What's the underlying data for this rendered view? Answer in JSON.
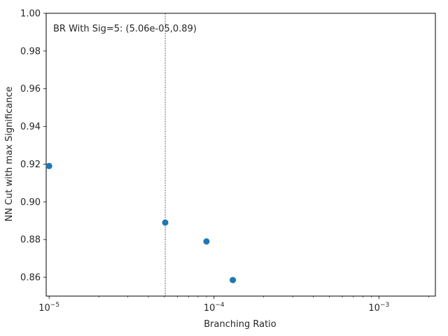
{
  "chart_data": {
    "type": "scatter",
    "title": "",
    "xlabel": "Branching Ratio",
    "ylabel": "NN Cut with max Significance",
    "xscale": "log",
    "xlim": [
      9.6e-06,
      0.0022
    ],
    "ylim": [
      0.85,
      1.0
    ],
    "grid": false,
    "x_ticks": [
      {
        "value": 1e-05,
        "base": "10",
        "exp": "−5"
      },
      {
        "value": 0.0001,
        "base": "10",
        "exp": "−4"
      },
      {
        "value": 0.001,
        "base": "10",
        "exp": "−3"
      }
    ],
    "y_ticks": [
      0.86,
      0.88,
      0.9,
      0.92,
      0.94,
      0.96,
      0.98,
      1.0
    ],
    "y_tick_labels": [
      "0.86",
      "0.88",
      "0.90",
      "0.92",
      "0.94",
      "0.96",
      "0.98",
      "1.00"
    ],
    "series": [
      {
        "color": "#1f77b4",
        "points": [
          {
            "x": 1e-05,
            "y": 0.919
          },
          {
            "x": 5.06e-05,
            "y": 0.889
          },
          {
            "x": 9e-05,
            "y": 0.879
          },
          {
            "x": 0.00013,
            "y": 0.8585
          }
        ]
      }
    ],
    "vline": {
      "x": 5.06e-05,
      "style": "dashed",
      "color": "#000000"
    },
    "annotation": "BR With Sig=5: (5.06e-05,0.89)"
  }
}
